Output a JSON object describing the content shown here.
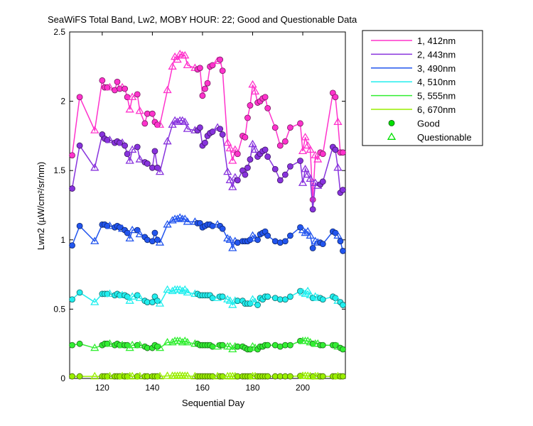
{
  "chart_data": {
    "type": "line",
    "title": "SeaWiFS Total Band, Lw2, MOBY HOUR: 22;  Good and Questionable Data",
    "xlabel": "Sequential Day",
    "ylabel": "Lwn2 (µW/cm²/sr/nm)",
    "xlim": [
      107,
      217
    ],
    "ylim": [
      0,
      2.5
    ],
    "xticks": [
      "120",
      "140",
      "160",
      "180",
      "200"
    ],
    "yticks": [
      "0",
      "0.5",
      "1",
      "1.5",
      "2",
      "2.5"
    ],
    "grid": false,
    "legend_position": "outside-right",
    "legend": {
      "good_label": "Good",
      "questionable_label": "Questionable",
      "marker_color": "#00e000"
    },
    "x": [
      108,
      111,
      117,
      120,
      121,
      122,
      123,
      125,
      126,
      127,
      128,
      129,
      130,
      131,
      132,
      134,
      135,
      137,
      138,
      140,
      141,
      142,
      143,
      146,
      148,
      149,
      150,
      151,
      152,
      153,
      154,
      157,
      158,
      159,
      160,
      161,
      162,
      163,
      164,
      166,
      167,
      168,
      170,
      171,
      172,
      173,
      174,
      176,
      177,
      178,
      179,
      180,
      181,
      182,
      183,
      184,
      185,
      186,
      189,
      191,
      193,
      195,
      199,
      200,
      201,
      202,
      203,
      204,
      205,
      206,
      207,
      208,
      212,
      213,
      214,
      215,
      216
    ],
    "marker": [
      "o",
      "o",
      "t",
      "o",
      "o",
      "o",
      "t",
      "o",
      "o",
      "o",
      "t",
      "o",
      "o",
      "t",
      "t",
      "o",
      "t",
      "o",
      "o",
      "o",
      "o",
      "o",
      "t",
      "t",
      "t",
      "t",
      "t",
      "t",
      "t",
      "t",
      "t",
      "t",
      "o",
      "o",
      "o",
      "o",
      "o",
      "o",
      "o",
      "t",
      "o",
      "o",
      "t",
      "t",
      "t",
      "t",
      "o",
      "o",
      "o",
      "o",
      "o",
      "t",
      "t",
      "o",
      "o",
      "o",
      "o",
      "o",
      "o",
      "o",
      "o",
      "o",
      "o",
      "t",
      "t",
      "t",
      "t",
      "o",
      "t",
      "t",
      "o",
      "o",
      "o",
      "o",
      "t",
      "o",
      "o"
    ],
    "series": [
      {
        "name": "1, 412nm",
        "color": "#ff33cc",
        "values": [
          1.61,
          2.03,
          1.79,
          2.15,
          2.1,
          2.1,
          2.1,
          2.08,
          2.14,
          2.09,
          2.1,
          2.09,
          2.03,
          1.94,
          2.03,
          2.05,
          1.93,
          1.84,
          1.91,
          1.91,
          1.85,
          1.83,
          1.83,
          2.08,
          2.25,
          2.32,
          2.3,
          2.34,
          2.33,
          2.33,
          2.26,
          2.24,
          2.23,
          2.24,
          2.04,
          2.09,
          2.13,
          2.25,
          2.26,
          2.29,
          2.3,
          2.22,
          1.7,
          1.66,
          1.57,
          1.65,
          1.62,
          1.75,
          1.74,
          1.88,
          1.97,
          2.12,
          2.07,
          1.99,
          2.0,
          2.02,
          2.03,
          1.95,
          1.81,
          1.68,
          1.71,
          1.81,
          1.84,
          1.64,
          1.74,
          1.68,
          1.65,
          1.29,
          1.61,
          1.58,
          1.63,
          1.62,
          2.06,
          2.03,
          1.85,
          1.63,
          1.63
        ]
      },
      {
        "name": "2, 443nm",
        "color": "#8833dd",
        "values": [
          1.37,
          1.68,
          1.52,
          1.76,
          1.73,
          1.72,
          1.72,
          1.7,
          1.71,
          1.7,
          1.7,
          1.68,
          1.62,
          1.57,
          1.65,
          1.67,
          1.58,
          1.56,
          1.55,
          1.52,
          1.64,
          1.52,
          1.49,
          1.71,
          1.83,
          1.86,
          1.85,
          1.86,
          1.86,
          1.85,
          1.8,
          1.79,
          1.79,
          1.81,
          1.68,
          1.7,
          1.75,
          1.77,
          1.78,
          1.81,
          1.8,
          1.76,
          1.49,
          1.43,
          1.38,
          1.45,
          1.43,
          1.5,
          1.47,
          1.52,
          1.58,
          1.69,
          1.65,
          1.6,
          1.62,
          1.64,
          1.65,
          1.6,
          1.51,
          1.43,
          1.47,
          1.53,
          1.57,
          1.41,
          1.51,
          1.47,
          1.44,
          1.22,
          1.41,
          1.39,
          1.4,
          1.42,
          1.67,
          1.65,
          1.52,
          1.34,
          1.36
        ]
      },
      {
        "name": "3, 490nm",
        "color": "#2255ee",
        "values": [
          0.96,
          1.1,
          0.99,
          1.11,
          1.11,
          1.1,
          1.1,
          1.09,
          1.1,
          1.09,
          1.08,
          1.07,
          1.05,
          1.01,
          1.07,
          1.07,
          1.04,
          1.02,
          1.0,
          0.99,
          1.05,
          1.0,
          0.98,
          1.11,
          1.14,
          1.15,
          1.15,
          1.16,
          1.15,
          1.15,
          1.13,
          1.13,
          1.12,
          1.12,
          1.09,
          1.1,
          1.11,
          1.11,
          1.1,
          1.11,
          1.1,
          1.08,
          1.01,
          1.0,
          0.94,
          0.99,
          0.98,
          0.99,
          0.99,
          0.99,
          1.0,
          1.03,
          1.01,
          1.0,
          1.04,
          1.05,
          1.06,
          1.03,
          0.99,
          0.98,
          0.99,
          1.03,
          1.09,
          1.07,
          1.05,
          1.06,
          1.03,
          0.94,
          0.99,
          0.98,
          0.98,
          0.97,
          1.06,
          1.05,
          1.03,
          0.99,
          0.92
        ]
      },
      {
        "name": "4, 510nm",
        "color": "#22eeee",
        "values": [
          0.57,
          0.62,
          0.55,
          0.61,
          0.61,
          0.61,
          0.61,
          0.6,
          0.61,
          0.6,
          0.6,
          0.6,
          0.59,
          0.56,
          0.59,
          0.6,
          0.58,
          0.56,
          0.55,
          0.55,
          0.59,
          0.56,
          0.54,
          0.64,
          0.63,
          0.64,
          0.64,
          0.64,
          0.63,
          0.64,
          0.62,
          0.61,
          0.61,
          0.6,
          0.6,
          0.6,
          0.6,
          0.6,
          0.58,
          0.58,
          0.59,
          0.59,
          0.57,
          0.56,
          0.53,
          0.56,
          0.56,
          0.56,
          0.54,
          0.54,
          0.54,
          0.57,
          0.55,
          0.53,
          0.58,
          0.57,
          0.59,
          0.59,
          0.58,
          0.57,
          0.57,
          0.59,
          0.63,
          0.62,
          0.61,
          0.63,
          0.6,
          0.58,
          0.59,
          0.58,
          0.58,
          0.57,
          0.59,
          0.58,
          0.56,
          0.55,
          0.53
        ]
      },
      {
        "name": "5, 555nm",
        "color": "#33ee33",
        "values": [
          0.24,
          0.25,
          0.22,
          0.24,
          0.25,
          0.25,
          0.25,
          0.24,
          0.25,
          0.24,
          0.24,
          0.24,
          0.24,
          0.22,
          0.24,
          0.24,
          0.24,
          0.23,
          0.22,
          0.22,
          0.24,
          0.23,
          0.22,
          0.26,
          0.26,
          0.27,
          0.27,
          0.27,
          0.26,
          0.27,
          0.26,
          0.25,
          0.25,
          0.24,
          0.24,
          0.24,
          0.24,
          0.24,
          0.23,
          0.23,
          0.24,
          0.24,
          0.23,
          0.23,
          0.21,
          0.23,
          0.23,
          0.23,
          0.22,
          0.21,
          0.21,
          0.23,
          0.22,
          0.21,
          0.23,
          0.23,
          0.24,
          0.24,
          0.24,
          0.23,
          0.24,
          0.24,
          0.27,
          0.27,
          0.27,
          0.27,
          0.26,
          0.25,
          0.25,
          0.25,
          0.24,
          0.24,
          0.24,
          0.24,
          0.23,
          0.22,
          0.21
        ]
      },
      {
        "name": "6, 670nm",
        "color": "#99ee00",
        "values": [
          0.015,
          0.015,
          0.015,
          0.015,
          0.015,
          0.015,
          0.015,
          0.015,
          0.015,
          0.015,
          0.015,
          0.015,
          0.015,
          0.015,
          0.015,
          0.015,
          0.015,
          0.015,
          0.015,
          0.015,
          0.015,
          0.015,
          0.015,
          0.018,
          0.018,
          0.018,
          0.018,
          0.02,
          0.018,
          0.018,
          0.018,
          0.015,
          0.015,
          0.015,
          0.015,
          0.015,
          0.015,
          0.015,
          0.015,
          0.015,
          0.015,
          0.015,
          0.015,
          0.015,
          0.015,
          0.015,
          0.015,
          0.015,
          0.015,
          0.015,
          0.015,
          0.015,
          0.015,
          0.015,
          0.015,
          0.015,
          0.015,
          0.015,
          0.015,
          0.015,
          0.015,
          0.015,
          0.018,
          0.018,
          0.018,
          0.018,
          0.015,
          0.015,
          0.015,
          0.015,
          0.015,
          0.015,
          0.015,
          0.015,
          0.015,
          0.015,
          0.015
        ]
      }
    ]
  }
}
